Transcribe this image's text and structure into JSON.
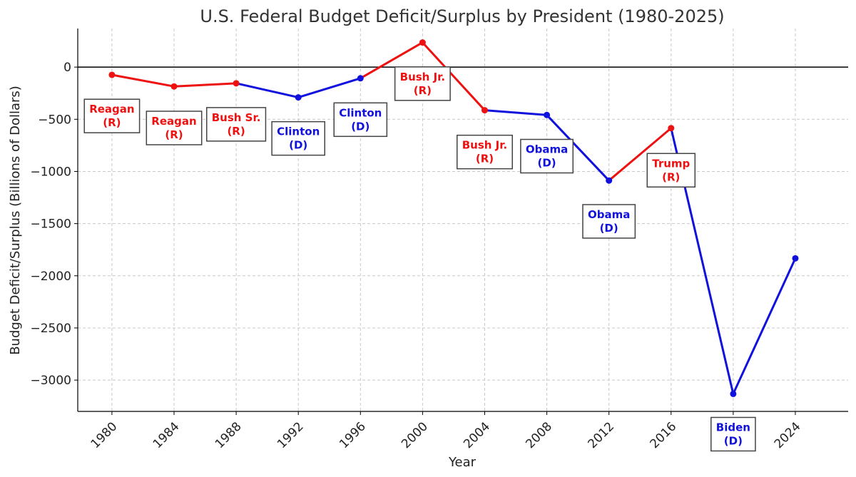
{
  "chart_data": {
    "type": "line",
    "title": "U.S. Federal Budget Deficit/Surplus by President (1980-2025)",
    "xlabel": "Year",
    "ylabel": "Budget Deficit/Surplus (Billions of Dollars)",
    "xlim": [
      1977.8,
      2027.4
    ],
    "ylim": [
      -3300,
      370
    ],
    "xticks": [
      1980,
      1984,
      1988,
      1992,
      1996,
      2000,
      2004,
      2008,
      2012,
      2016,
      2020,
      2024
    ],
    "yticks": [
      0,
      -500,
      -1000,
      -1500,
      -2000,
      -2500,
      -3000
    ],
    "grid": true,
    "zero_line": true,
    "colors": {
      "R": "#ee1111",
      "D": "#1111dd"
    },
    "points": [
      {
        "x": 1980,
        "y": -74,
        "party": "R"
      },
      {
        "x": 1984,
        "y": -185,
        "party": "R"
      },
      {
        "x": 1988,
        "y": -155,
        "party": "R"
      },
      {
        "x": 1992,
        "y": -290,
        "party": "D"
      },
      {
        "x": 1996,
        "y": -107,
        "party": "D"
      },
      {
        "x": 2000,
        "y": 236,
        "party": "R"
      },
      {
        "x": 2004,
        "y": -413,
        "party": "R"
      },
      {
        "x": 2008,
        "y": -459,
        "party": "D"
      },
      {
        "x": 2012,
        "y": -1087,
        "party": "D"
      },
      {
        "x": 2016,
        "y": -585,
        "party": "R"
      },
      {
        "x": 2020,
        "y": -3132,
        "party": "D"
      },
      {
        "x": 2024,
        "y": -1833,
        "party": "D"
      }
    ],
    "annotations": [
      {
        "name": "Reagan",
        "party_label": "(R)",
        "party": "R",
        "x": 1980,
        "y": -465
      },
      {
        "name": "Reagan",
        "party_label": "(R)",
        "party": "R",
        "x": 1984,
        "y": -580
      },
      {
        "name": "Bush Sr.",
        "party_label": "(R)",
        "party": "R",
        "x": 1988,
        "y": -545
      },
      {
        "name": "Clinton",
        "party_label": "(D)",
        "party": "D",
        "x": 1992,
        "y": -680
      },
      {
        "name": "Clinton",
        "party_label": "(D)",
        "party": "D",
        "x": 1996,
        "y": -500
      },
      {
        "name": "Bush Jr.",
        "party_label": "(R)",
        "party": "R",
        "x": 2000,
        "y": -155
      },
      {
        "name": "Bush Jr.",
        "party_label": "(R)",
        "party": "R",
        "x": 2004,
        "y": -810
      },
      {
        "name": "Obama",
        "party_label": "(D)",
        "party": "D",
        "x": 2008,
        "y": -850
      },
      {
        "name": "Obama",
        "party_label": "(D)",
        "party": "D",
        "x": 2012,
        "y": -1475
      },
      {
        "name": "Trump",
        "party_label": "(R)",
        "party": "R",
        "x": 2016,
        "y": -985
      },
      {
        "name": "Biden",
        "party_label": "(D)",
        "party": "D",
        "x": 2020,
        "y": -3515
      }
    ]
  }
}
